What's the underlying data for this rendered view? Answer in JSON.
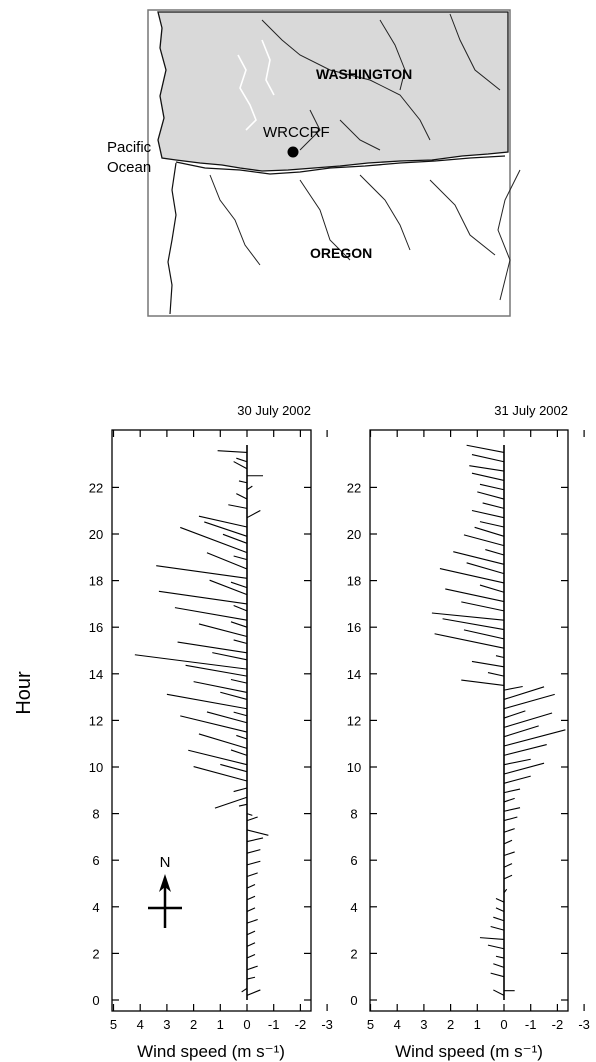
{
  "map": {
    "state_north": "WASHINGTON",
    "state_south": "OREGON",
    "site": "WRCCRF",
    "ocean_line1": "Pacific",
    "ocean_line2": "Ocean"
  },
  "compass": {
    "label": "N"
  },
  "colors": {
    "ink": "#000000",
    "washington_fill": "#d9d9d9",
    "background": "#ffffff"
  },
  "y_axis_title": "Hour",
  "chart_data": [
    {
      "type": "vector",
      "title": "30 July 2002",
      "xlabel": "Wind speed (m s⁻¹)",
      "ylabel": "Hour",
      "xlim": [
        5,
        -3
      ],
      "ylim": [
        0,
        24
      ],
      "xticks": [
        5,
        4,
        3,
        2,
        1,
        0,
        -1,
        -2,
        -3
      ],
      "yticks": [
        0,
        2,
        4,
        6,
        8,
        10,
        12,
        14,
        16,
        18,
        20,
        22
      ],
      "vectors": [
        {
          "hour": 0.2,
          "u": -0.5,
          "v": 0.3
        },
        {
          "hour": 0.5,
          "u": 0.2,
          "v": -0.2
        },
        {
          "hour": 0.9,
          "u": -0.3,
          "v": 0.1
        },
        {
          "hour": 1.3,
          "u": -0.4,
          "v": 0.2
        },
        {
          "hour": 1.8,
          "u": -0.3,
          "v": 0.2
        },
        {
          "hour": 2.3,
          "u": -0.3,
          "v": 0.2
        },
        {
          "hour": 2.8,
          "u": -0.3,
          "v": 0.2
        },
        {
          "hour": 3.3,
          "u": -0.4,
          "v": 0.2
        },
        {
          "hour": 3.8,
          "u": -0.3,
          "v": 0.2
        },
        {
          "hour": 4.3,
          "u": -0.3,
          "v": 0.2
        },
        {
          "hour": 4.8,
          "u": -0.3,
          "v": 0.2
        },
        {
          "hour": 5.3,
          "u": -0.4,
          "v": 0.2
        },
        {
          "hour": 5.8,
          "u": -0.5,
          "v": 0.2
        },
        {
          "hour": 6.3,
          "u": -0.5,
          "v": 0.2
        },
        {
          "hour": 6.8,
          "u": -0.6,
          "v": 0.2
        },
        {
          "hour": 7.3,
          "u": -0.8,
          "v": -0.3
        },
        {
          "hour": 7.7,
          "u": -0.4,
          "v": 0.2
        },
        {
          "hour": 8.0,
          "u": -0.2,
          "v": -0.1
        },
        {
          "hour": 8.4,
          "u": 0.3,
          "v": -0.1
        },
        {
          "hour": 8.7,
          "u": 1.2,
          "v": -0.6
        },
        {
          "hour": 9.1,
          "u": 0.5,
          "v": -0.2
        },
        {
          "hour": 9.4,
          "u": 2.0,
          "v": 0.8
        },
        {
          "hour": 9.8,
          "u": 1.0,
          "v": 0.4
        },
        {
          "hour": 10.1,
          "u": 2.2,
          "v": 0.8
        },
        {
          "hour": 10.5,
          "u": 0.6,
          "v": 0.3
        },
        {
          "hour": 10.8,
          "u": 1.8,
          "v": 0.8
        },
        {
          "hour": 11.2,
          "u": 0.4,
          "v": 0.2
        },
        {
          "hour": 11.5,
          "u": 2.5,
          "v": 0.9
        },
        {
          "hour": 11.9,
          "u": 1.5,
          "v": 0.6
        },
        {
          "hour": 12.2,
          "u": 0.5,
          "v": 0.2
        },
        {
          "hour": 12.5,
          "u": 3.0,
          "v": 0.8
        },
        {
          "hour": 12.9,
          "u": 1.0,
          "v": 0.4
        },
        {
          "hour": 13.2,
          "u": 2.0,
          "v": 0.6
        },
        {
          "hour": 13.6,
          "u": 0.6,
          "v": 0.2
        },
        {
          "hour": 13.9,
          "u": 2.3,
          "v": 0.6
        },
        {
          "hour": 14.2,
          "u": 4.2,
          "v": 0.8
        },
        {
          "hour": 14.6,
          "u": 1.3,
          "v": 0.4
        },
        {
          "hour": 14.9,
          "u": 2.6,
          "v": 0.6
        },
        {
          "hour": 15.3,
          "u": 0.5,
          "v": 0.2
        },
        {
          "hour": 15.6,
          "u": 1.8,
          "v": 0.7
        },
        {
          "hour": 16.0,
          "u": 0.6,
          "v": 0.3
        },
        {
          "hour": 16.3,
          "u": 2.7,
          "v": 0.7
        },
        {
          "hour": 16.7,
          "u": 0.5,
          "v": 0.3
        },
        {
          "hour": 17.0,
          "u": 3.3,
          "v": 0.7
        },
        {
          "hour": 17.4,
          "u": 1.4,
          "v": 0.8
        },
        {
          "hour": 17.7,
          "u": 0.6,
          "v": 0.3
        },
        {
          "hour": 18.1,
          "u": 3.4,
          "v": 0.7
        },
        {
          "hour": 18.5,
          "u": 1.5,
          "v": 0.9
        },
        {
          "hour": 18.9,
          "u": 0.5,
          "v": 0.2
        },
        {
          "hour": 19.2,
          "u": 2.5,
          "v": 1.4
        },
        {
          "hour": 19.6,
          "u": 0.9,
          "v": 0.5
        },
        {
          "hour": 19.9,
          "u": 1.6,
          "v": 0.8
        },
        {
          "hour": 20.3,
          "u": 1.8,
          "v": 0.6
        },
        {
          "hour": 20.7,
          "u": -0.5,
          "v": 0.4
        },
        {
          "hour": 21.1,
          "u": 0.7,
          "v": 0.2
        },
        {
          "hour": 21.5,
          "u": 0.4,
          "v": 0.3
        },
        {
          "hour": 21.9,
          "u": -0.2,
          "v": 0.2
        },
        {
          "hour": 22.2,
          "u": 0.3,
          "v": 0.1
        },
        {
          "hour": 22.5,
          "u": -0.6,
          "v": 0.0
        },
        {
          "hour": 22.8,
          "u": 0.5,
          "v": 0.4
        },
        {
          "hour": 23.1,
          "u": 0.4,
          "v": 0.2
        },
        {
          "hour": 23.5,
          "u": 1.1,
          "v": 0.1
        }
      ]
    },
    {
      "type": "vector",
      "title": "31 July 2002",
      "xlabel": "Wind speed (m s⁻¹)",
      "ylabel": "Hour",
      "xlim": [
        5,
        -3
      ],
      "ylim": [
        0,
        24
      ],
      "xticks": [
        5,
        4,
        3,
        2,
        1,
        0,
        -1,
        -2,
        -3
      ],
      "yticks": [
        0,
        2,
        4,
        6,
        8,
        10,
        12,
        14,
        16,
        18,
        20,
        22
      ],
      "vectors": [
        {
          "hour": 0.4,
          "u": -0.4,
          "v": 0.0
        },
        {
          "hour": 0.2,
          "u": 0.4,
          "v": 0.3
        },
        {
          "hour": 1.0,
          "u": 0.5,
          "v": 0.2
        },
        {
          "hour": 1.4,
          "u": 0.4,
          "v": 0.2
        },
        {
          "hour": 1.8,
          "u": 0.3,
          "v": 0.1
        },
        {
          "hour": 2.2,
          "u": 0.6,
          "v": 0.2
        },
        {
          "hour": 2.6,
          "u": 0.9,
          "v": 0.1
        },
        {
          "hour": 3.0,
          "u": 0.5,
          "v": 0.2
        },
        {
          "hour": 3.4,
          "u": 0.4,
          "v": 0.2
        },
        {
          "hour": 3.8,
          "u": 0.3,
          "v": 0.2
        },
        {
          "hour": 4.2,
          "u": 0.3,
          "v": 0.2
        },
        {
          "hour": 4.6,
          "u": -0.1,
          "v": 0.2
        },
        {
          "hour": 5.2,
          "u": -0.3,
          "v": 0.2
        },
        {
          "hour": 5.7,
          "u": -0.3,
          "v": 0.2
        },
        {
          "hour": 6.2,
          "u": -0.4,
          "v": 0.2
        },
        {
          "hour": 6.7,
          "u": -0.3,
          "v": 0.2
        },
        {
          "hour": 7.2,
          "u": -0.4,
          "v": 0.2
        },
        {
          "hour": 7.7,
          "u": -0.5,
          "v": 0.2
        },
        {
          "hour": 8.1,
          "u": -0.6,
          "v": 0.2
        },
        {
          "hour": 8.5,
          "u": -0.4,
          "v": 0.2
        },
        {
          "hour": 8.9,
          "u": -0.6,
          "v": 0.2
        },
        {
          "hour": 9.3,
          "u": -1.0,
          "v": 0.4
        },
        {
          "hour": 9.7,
          "u": -1.5,
          "v": 0.6
        },
        {
          "hour": 10.1,
          "u": -1.0,
          "v": 0.3
        },
        {
          "hour": 10.5,
          "u": -1.6,
          "v": 0.6
        },
        {
          "hour": 10.9,
          "u": -2.3,
          "v": 0.9
        },
        {
          "hour": 11.3,
          "u": -1.3,
          "v": 0.6
        },
        {
          "hour": 11.7,
          "u": -1.8,
          "v": 0.8
        },
        {
          "hour": 12.1,
          "u": -0.8,
          "v": 0.4
        },
        {
          "hour": 12.5,
          "u": -1.9,
          "v": 0.8
        },
        {
          "hour": 12.9,
          "u": -1.5,
          "v": 0.7
        },
        {
          "hour": 13.3,
          "u": -0.7,
          "v": 0.2
        },
        {
          "hour": 13.5,
          "u": 1.6,
          "v": 0.3
        },
        {
          "hour": 13.9,
          "u": 0.6,
          "v": 0.2
        },
        {
          "hour": 14.3,
          "u": 1.2,
          "v": 0.3
        },
        {
          "hour": 14.7,
          "u": 0.3,
          "v": 0.1
        },
        {
          "hour": 15.1,
          "u": 2.6,
          "v": 0.8
        },
        {
          "hour": 15.5,
          "u": 1.5,
          "v": 0.5
        },
        {
          "hour": 15.9,
          "u": 2.3,
          "v": 0.6
        },
        {
          "hour": 16.3,
          "u": 2.7,
          "v": 0.4
        },
        {
          "hour": 16.7,
          "u": 1.6,
          "v": 0.5
        },
        {
          "hour": 17.1,
          "u": 2.2,
          "v": 0.7
        },
        {
          "hour": 17.5,
          "u": 0.9,
          "v": 0.4
        },
        {
          "hour": 17.9,
          "u": 2.4,
          "v": 0.8
        },
        {
          "hour": 18.3,
          "u": 1.4,
          "v": 0.6
        },
        {
          "hour": 18.7,
          "u": 1.9,
          "v": 0.7
        },
        {
          "hour": 19.1,
          "u": 0.7,
          "v": 0.3
        },
        {
          "hour": 19.5,
          "u": 1.5,
          "v": 0.6
        },
        {
          "hour": 19.9,
          "u": 1.1,
          "v": 0.5
        },
        {
          "hour": 20.3,
          "u": 0.9,
          "v": 0.3
        },
        {
          "hour": 20.7,
          "u": 1.2,
          "v": 0.4
        },
        {
          "hour": 21.1,
          "u": 0.8,
          "v": 0.3
        },
        {
          "hour": 21.5,
          "u": 1.0,
          "v": 0.4
        },
        {
          "hour": 21.9,
          "u": 0.9,
          "v": 0.3
        },
        {
          "hour": 22.3,
          "u": 1.2,
          "v": 0.4
        },
        {
          "hour": 22.7,
          "u": 1.3,
          "v": 0.3
        },
        {
          "hour": 23.1,
          "u": 1.2,
          "v": 0.4
        },
        {
          "hour": 23.5,
          "u": 1.4,
          "v": 0.4
        }
      ]
    }
  ]
}
